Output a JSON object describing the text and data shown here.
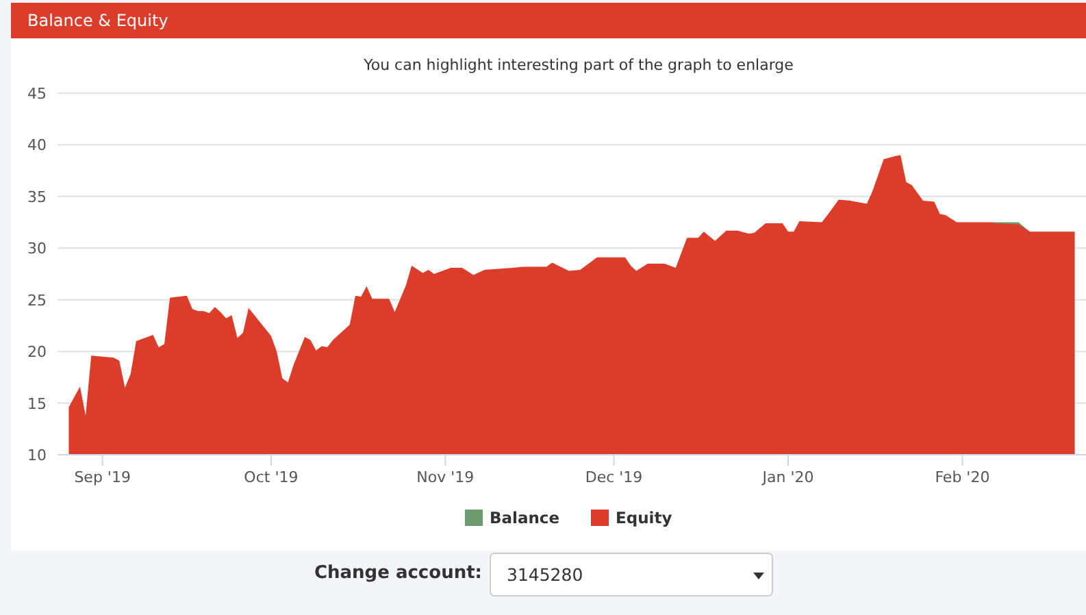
{
  "chart_data": {
    "type": "area",
    "title": "Balance & Equity",
    "subtitle": "You can highlight interesting part of the graph to enlarge",
    "x": [
      "2019-08-26",
      "2019-08-28",
      "2019-08-29",
      "2019-08-30",
      "2019-09-03",
      "2019-09-04",
      "2019-09-05",
      "2019-09-06",
      "2019-09-07",
      "2019-09-10",
      "2019-09-11",
      "2019-09-12",
      "2019-09-13",
      "2019-09-16",
      "2019-09-17",
      "2019-09-18",
      "2019-09-19",
      "2019-09-20",
      "2019-09-21",
      "2019-09-22",
      "2019-09-23",
      "2019-09-24",
      "2019-09-25",
      "2019-09-26",
      "2019-09-27",
      "2019-10-01",
      "2019-10-02",
      "2019-10-03",
      "2019-10-04",
      "2019-10-05",
      "2019-10-07",
      "2019-10-08",
      "2019-10-09",
      "2019-10-10",
      "2019-10-11",
      "2019-10-12",
      "2019-10-15",
      "2019-10-16",
      "2019-10-17",
      "2019-10-18",
      "2019-10-19",
      "2019-10-22",
      "2019-10-23",
      "2019-10-25",
      "2019-10-26",
      "2019-10-28",
      "2019-10-29",
      "2019-10-30",
      "2019-11-02",
      "2019-11-04",
      "2019-11-06",
      "2019-11-08",
      "2019-11-13",
      "2019-11-15",
      "2019-11-19",
      "2019-11-20",
      "2019-11-23",
      "2019-11-25",
      "2019-11-28",
      "2019-12-03",
      "2019-12-04",
      "2019-12-05",
      "2019-12-07",
      "2019-12-10",
      "2019-12-12",
      "2019-12-14",
      "2019-12-16",
      "2019-12-17",
      "2019-12-19",
      "2019-12-21",
      "2019-12-23",
      "2019-12-25",
      "2019-12-26",
      "2019-12-28",
      "2019-12-31",
      "2020-01-01",
      "2020-01-02",
      "2020-01-03",
      "2020-01-07",
      "2020-01-08",
      "2020-01-10",
      "2020-01-12",
      "2020-01-14",
      "2020-01-15",
      "2020-01-16",
      "2020-01-18",
      "2020-01-20",
      "2020-01-21",
      "2020-01-22",
      "2020-01-23",
      "2020-01-25",
      "2020-01-27",
      "2020-01-28",
      "2020-01-29",
      "2020-01-31",
      "2020-02-06",
      "2020-02-07",
      "2020-02-11",
      "2020-02-13",
      "2020-02-21"
    ],
    "series": [
      {
        "name": "Balance",
        "color": "#6e9a72",
        "values": [
          null,
          null,
          null,
          null,
          null,
          null,
          null,
          null,
          null,
          null,
          null,
          null,
          null,
          null,
          null,
          null,
          null,
          null,
          null,
          null,
          null,
          null,
          null,
          null,
          null,
          null,
          null,
          null,
          null,
          null,
          null,
          null,
          null,
          null,
          null,
          null,
          null,
          null,
          null,
          null,
          null,
          null,
          null,
          null,
          null,
          null,
          null,
          null,
          null,
          null,
          null,
          null,
          null,
          null,
          null,
          null,
          null,
          null,
          null,
          null,
          null,
          null,
          null,
          null,
          null,
          null,
          null,
          null,
          null,
          null,
          null,
          null,
          null,
          null,
          null,
          null,
          null,
          null,
          null,
          null,
          null,
          null,
          null,
          null,
          null,
          null,
          null,
          null,
          null,
          null,
          null,
          null,
          null,
          null,
          null,
          32.5,
          32.5,
          32.5,
          31.6,
          null
        ]
      },
      {
        "name": "Equity",
        "color": "#dc3d2a",
        "values": [
          14.6,
          16.6,
          13.8,
          19.6,
          19.4,
          19.1,
          16.5,
          17.8,
          21.0,
          21.6,
          20.4,
          20.7,
          25.2,
          25.4,
          24.1,
          23.9,
          23.9,
          23.7,
          24.3,
          23.8,
          23.2,
          23.5,
          21.3,
          21.8,
          24.2,
          21.5,
          20.0,
          17.4,
          17.0,
          18.7,
          21.4,
          21.1,
          20.1,
          20.5,
          20.4,
          21.1,
          22.6,
          25.4,
          25.3,
          26.3,
          25.1,
          25.1,
          23.8,
          26.4,
          28.3,
          27.6,
          27.9,
          27.5,
          28.1,
          28.1,
          27.4,
          27.9,
          28.1,
          28.2,
          28.2,
          28.6,
          27.8,
          27.9,
          29.1,
          29.1,
          28.3,
          27.8,
          28.5,
          28.5,
          28.1,
          31.0,
          31.0,
          31.6,
          30.7,
          31.7,
          31.7,
          31.4,
          31.5,
          32.4,
          32.4,
          31.6,
          31.6,
          32.6,
          32.5,
          33.2,
          34.7,
          34.6,
          34.4,
          34.3,
          35.5,
          38.6,
          38.9,
          39.0,
          36.4,
          36.1,
          34.6,
          34.5,
          33.3,
          33.2,
          32.5,
          32.5,
          32.4,
          32.3,
          31.6,
          31.6
        ]
      }
    ],
    "xlim": [
      "2019-08-24",
      "2020-02-23"
    ],
    "xticks": [
      {
        "value": "2019-09-01",
        "label": "Sep '19"
      },
      {
        "value": "2019-10-01",
        "label": "Oct '19"
      },
      {
        "value": "2019-11-01",
        "label": "Nov '19"
      },
      {
        "value": "2019-12-01",
        "label": "Dec '19"
      },
      {
        "value": "2020-01-01",
        "label": "Jan '20"
      },
      {
        "value": "2020-02-01",
        "label": "Feb '20"
      }
    ],
    "ylim": [
      10,
      45
    ],
    "yticks": [
      10,
      15,
      20,
      25,
      30,
      35,
      40,
      45
    ],
    "grid": "y",
    "legend": "bottom",
    "annotations": [
      "Change account:",
      "3145280"
    ]
  }
}
